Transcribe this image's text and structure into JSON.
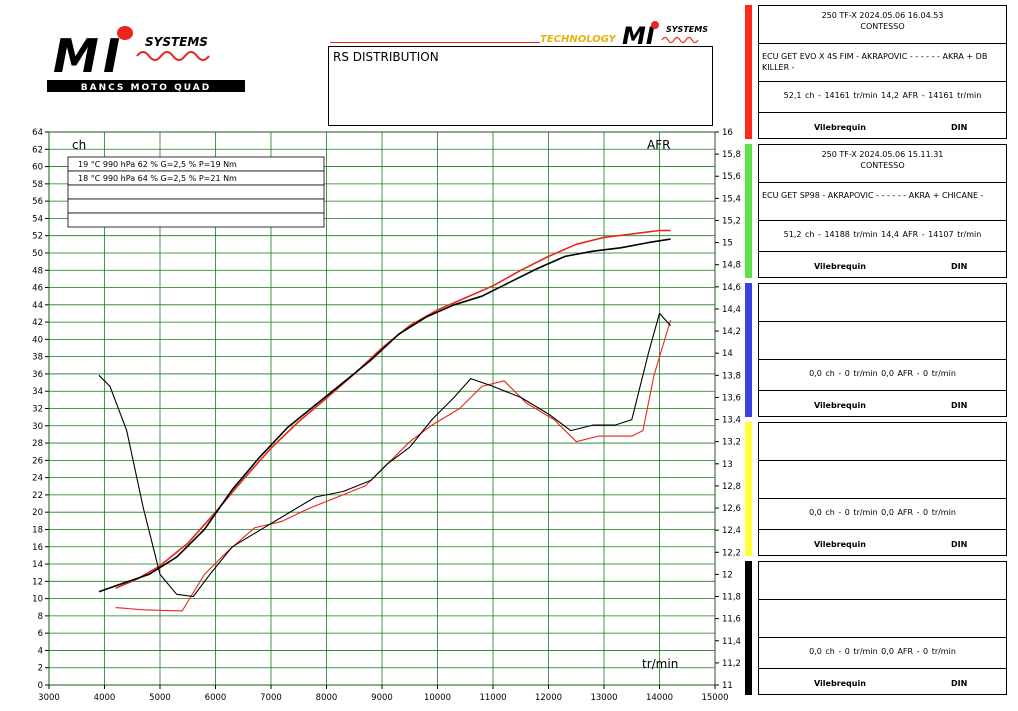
{
  "header": {
    "logo_main": "MI",
    "logo_systems": "SYSTEMS",
    "logo_tagline": "BANCS MOTO QUAD",
    "tech_logo_word": "TECHNOLOGY",
    "tech_logo_brand": "MI",
    "tech_logo_systems": "SYSTEMS",
    "title": "RS DISTRIBUTION"
  },
  "colors": {
    "run1": "#e8261c",
    "run2": "#000000",
    "grid": "#1a7a1a",
    "panel_strips": [
      "#ff2a1a",
      "#5ee04a",
      "#3a42e6",
      "#ffff3a",
      "#000000"
    ]
  },
  "panels": [
    {
      "line1": "250 TF-X   2024.05.06 16.04.53",
      "line2": "CONTESSO",
      "desc": "ECU GET EVO X 4S FIM - AKRAPOVIC - - - - - - AKRA + DB KILLER -",
      "result": "52,1 ch - 14161 tr/min      14,2 AFR - 14161 tr/min",
      "footer_left": "Vilebrequin",
      "footer_right": "DIN"
    },
    {
      "line1": "250 TF-X   2024.05.06 15.11.31",
      "line2": "CONTESSO",
      "desc": "ECU GET SP98 - AKRAPOVIC - - - - - - AKRA + CHICANE -",
      "result": "51,2 ch - 14188 tr/min      14,4 AFR - 14107 tr/min",
      "footer_left": "Vilebrequin",
      "footer_right": "DIN"
    },
    {
      "line1": "",
      "line2": "",
      "desc": "",
      "result": "0,0 ch - 0 tr/min      0,0 AFR - 0 tr/min",
      "footer_left": "Vilebrequin",
      "footer_right": "DIN"
    },
    {
      "line1": "",
      "line2": "",
      "desc": "",
      "result": "0,0 ch - 0 tr/min      0,0 AFR - 0 tr/min",
      "footer_left": "Vilebrequin",
      "footer_right": "DIN"
    },
    {
      "line1": "",
      "line2": "",
      "desc": "",
      "result": "0,0 ch - 0 tr/min      0,0 AFR - 0 tr/min",
      "footer_left": "Vilebrequin",
      "footer_right": "DIN"
    }
  ],
  "chart_data": {
    "type": "line",
    "title": "",
    "left_axis_label": "ch",
    "right_axis_label": "AFR",
    "xlabel": "tr/min",
    "xlim": [
      3000,
      15000
    ],
    "x_ticks": [
      3000,
      4000,
      5000,
      6000,
      7000,
      8000,
      9000,
      10000,
      11000,
      12000,
      13000,
      14000,
      15000
    ],
    "ylim_left": [
      0,
      64
    ],
    "y_ticks_left": [
      0,
      2,
      4,
      6,
      8,
      10,
      12,
      14,
      16,
      18,
      20,
      22,
      24,
      26,
      28,
      30,
      32,
      34,
      36,
      38,
      40,
      42,
      44,
      46,
      48,
      50,
      52,
      54,
      56,
      58,
      60,
      62,
      64
    ],
    "ylim_right": [
      11,
      16
    ],
    "y_ticks_right": [
      "11",
      "11,2",
      "11,4",
      "11,6",
      "11,8",
      "12",
      "12,2",
      "12,4",
      "12,6",
      "12,8",
      "13",
      "13,2",
      "13,4",
      "13,6",
      "13,8",
      "14",
      "14,2",
      "14,4",
      "14,6",
      "14,8",
      "15",
      "15,2",
      "15,4",
      "15,6",
      "15,8",
      "16"
    ],
    "conditions": [
      {
        "temp": "19 °C",
        "pressure": "990 hPa",
        "humidity": "62 %",
        "g": "G=2,5 %",
        "p": "P=19 Nm"
      },
      {
        "temp": "18 °C",
        "pressure": "990 hPa",
        "humidity": "64 %",
        "g": "G=2,5 %",
        "p": "P=21 Nm"
      }
    ],
    "series": [
      {
        "axis": "left",
        "color": "#e8261c",
        "points": [
          [
            4200,
            11.2
          ],
          [
            4600,
            12.3
          ],
          [
            5000,
            13.8
          ],
          [
            5500,
            16.4
          ],
          [
            6000,
            20.0
          ],
          [
            6500,
            23.8
          ],
          [
            7000,
            27.4
          ],
          [
            7500,
            30.5
          ],
          [
            8000,
            33.2
          ],
          [
            8500,
            36.0
          ],
          [
            9000,
            39.0
          ],
          [
            9500,
            41.6
          ],
          [
            10000,
            43.4
          ],
          [
            10500,
            44.8
          ],
          [
            11000,
            46.2
          ],
          [
            11500,
            48.0
          ],
          [
            12000,
            49.6
          ],
          [
            12500,
            51.0
          ],
          [
            13000,
            51.8
          ],
          [
            13500,
            52.2
          ],
          [
            14000,
            52.6
          ],
          [
            14200,
            52.6
          ]
        ]
      },
      {
        "axis": "left",
        "color": "#000000",
        "points": [
          [
            3900,
            10.8
          ],
          [
            4300,
            11.7
          ],
          [
            4800,
            12.8
          ],
          [
            5300,
            14.8
          ],
          [
            5800,
            18.0
          ],
          [
            6300,
            22.6
          ],
          [
            6800,
            26.4
          ],
          [
            7300,
            29.8
          ],
          [
            7800,
            32.4
          ],
          [
            8300,
            35.0
          ],
          [
            8800,
            37.6
          ],
          [
            9300,
            40.6
          ],
          [
            9800,
            42.6
          ],
          [
            10300,
            44.0
          ],
          [
            10800,
            45.0
          ],
          [
            11300,
            46.6
          ],
          [
            11800,
            48.2
          ],
          [
            12300,
            49.6
          ],
          [
            12800,
            50.2
          ],
          [
            13300,
            50.6
          ],
          [
            13800,
            51.2
          ],
          [
            14200,
            51.6
          ]
        ]
      },
      {
        "axis": "right",
        "color": "#e8261c",
        "points": [
          [
            4200,
            11.7
          ],
          [
            4700,
            11.68
          ],
          [
            5400,
            11.67
          ],
          [
            5800,
            12.0
          ],
          [
            6200,
            12.2
          ],
          [
            6700,
            12.42
          ],
          [
            7200,
            12.48
          ],
          [
            7700,
            12.6
          ],
          [
            8200,
            12.7
          ],
          [
            8700,
            12.8
          ],
          [
            9100,
            13.0
          ],
          [
            9500,
            13.2
          ],
          [
            9900,
            13.35
          ],
          [
            10400,
            13.5
          ],
          [
            10800,
            13.7
          ],
          [
            11200,
            13.75
          ],
          [
            11600,
            13.55
          ],
          [
            12100,
            13.4
          ],
          [
            12500,
            13.2
          ],
          [
            12900,
            13.25
          ],
          [
            13200,
            13.25
          ],
          [
            13500,
            13.25
          ],
          [
            13700,
            13.3
          ],
          [
            13900,
            13.8
          ],
          [
            14200,
            14.3
          ]
        ]
      },
      {
        "axis": "right",
        "color": "#000000",
        "points": [
          [
            3900,
            13.8
          ],
          [
            4100,
            13.7
          ],
          [
            4400,
            13.3
          ],
          [
            4700,
            12.6
          ],
          [
            5000,
            12.0
          ],
          [
            5300,
            11.82
          ],
          [
            5600,
            11.8
          ],
          [
            5900,
            12.0
          ],
          [
            6300,
            12.25
          ],
          [
            6800,
            12.4
          ],
          [
            7300,
            12.55
          ],
          [
            7800,
            12.7
          ],
          [
            8300,
            12.75
          ],
          [
            8800,
            12.85
          ],
          [
            9100,
            13.0
          ],
          [
            9500,
            13.15
          ],
          [
            9900,
            13.4
          ],
          [
            10300,
            13.6
          ],
          [
            10600,
            13.77
          ],
          [
            11000,
            13.7
          ],
          [
            11500,
            13.6
          ],
          [
            12000,
            13.45
          ],
          [
            12400,
            13.3
          ],
          [
            12800,
            13.35
          ],
          [
            13200,
            13.35
          ],
          [
            13500,
            13.4
          ],
          [
            13800,
            14.0
          ],
          [
            14000,
            14.36
          ],
          [
            14200,
            14.25
          ]
        ]
      }
    ]
  }
}
